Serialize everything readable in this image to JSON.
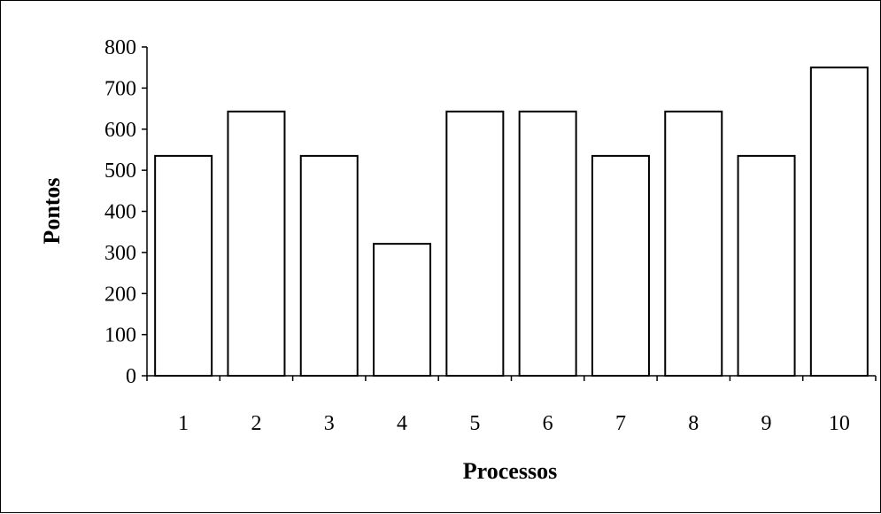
{
  "chart_data": {
    "type": "bar",
    "categories": [
      "1",
      "2",
      "3",
      "4",
      "5",
      "6",
      "7",
      "8",
      "9",
      "10"
    ],
    "values": [
      535,
      643,
      535,
      321,
      643,
      643,
      535,
      643,
      535,
      750
    ],
    "title": "",
    "xlabel": "Processos",
    "ylabel": "Pontos",
    "ylim": [
      0,
      800
    ],
    "yticks": [
      0,
      100,
      200,
      300,
      400,
      500,
      600,
      700,
      800
    ],
    "grid": false,
    "legend": "none",
    "colors": {
      "bar_fill": "#ffffff",
      "bar_stroke": "#000000",
      "axis": "#000000"
    }
  }
}
